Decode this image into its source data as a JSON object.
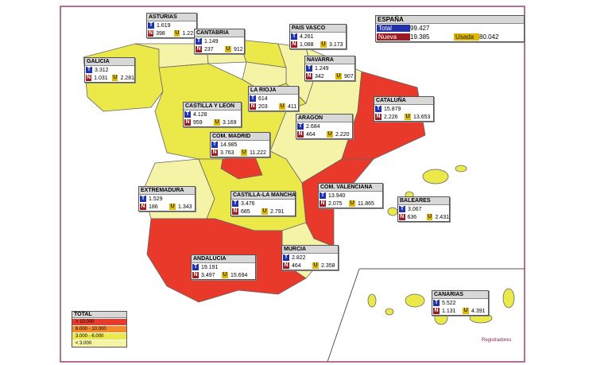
{
  "espana": {
    "title": "ESPAÑA",
    "total_label": "Total",
    "total": "99.427",
    "nueva_label": "Nueva",
    "nueva": "19.385",
    "usada_label": "Usada",
    "usada": "80.042"
  },
  "keys": {
    "t": "T",
    "n": "N",
    "u": "U"
  },
  "regions": [
    {
      "name": "ASTURIAS",
      "t": "1.619",
      "n": "398",
      "u": "1.221"
    },
    {
      "name": "CANTABRIA",
      "t": "1.149",
      "n": "237",
      "u": "912"
    },
    {
      "name": "PAIS VASCO",
      "t": "4.261",
      "n": "1.088",
      "u": "3.173"
    },
    {
      "name": "GALICIA",
      "t": "3.312",
      "n": "1.031",
      "u": "2.281"
    },
    {
      "name": "NAVARRA",
      "t": "1.249",
      "n": "342",
      "u": "907"
    },
    {
      "name": "LA RIOJA",
      "t": "614",
      "n": "203",
      "u": "411"
    },
    {
      "name": "CASTILLA Y LEON",
      "t": "4.128",
      "n": "959",
      "u": "3.169"
    },
    {
      "name": "ARAGON",
      "t": "2.684",
      "n": "464",
      "u": "2.220"
    },
    {
      "name": "CATALUÑA",
      "t": "15.879",
      "n": "2.226",
      "u": "13.653"
    },
    {
      "name": "COM. MADRID",
      "t": "14.985",
      "n": "3.763",
      "u": "11.222"
    },
    {
      "name": "EXTREMADURA",
      "t": "1.529",
      "n": "186",
      "u": "1.343"
    },
    {
      "name": "CASTILLA-LA MANCHA",
      "t": "3.476",
      "n": "685",
      "u": "2.791"
    },
    {
      "name": "COM. VALENCIANA",
      "t": "13.940",
      "n": "2.075",
      "u": "11.865"
    },
    {
      "name": "BALEARES",
      "t": "3.067",
      "n": "636",
      "u": "2.431"
    },
    {
      "name": "ANDALUCIA",
      "t": "19.191",
      "n": "3.497",
      "u": "15.694"
    },
    {
      "name": "MURCIA",
      "t": "2.822",
      "n": "464",
      "u": "2.358"
    },
    {
      "name": "CANARIAS",
      "t": "5.522",
      "n": "1.131",
      "u": "4.391"
    }
  ],
  "legend": {
    "title": "TOTAL",
    "items": [
      {
        "label": "> 10.000",
        "color": "#e8392a"
      },
      {
        "label": "6.000 - 10.000",
        "color": "#f08a2c"
      },
      {
        "label": "3.000 - 6.000",
        "color": "#ebe84a"
      },
      {
        "label": "< 3.000",
        "color": "#f5f3a6"
      }
    ]
  },
  "logo": "Registradores"
}
